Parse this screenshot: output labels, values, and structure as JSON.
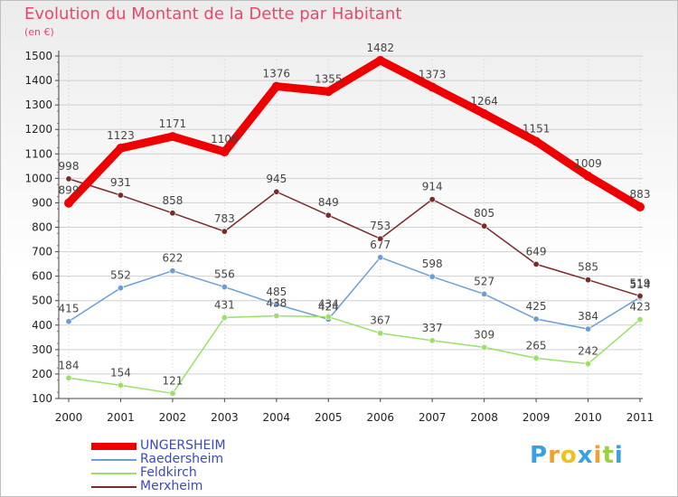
{
  "title": "Evolution du Montant de la Dette par Habitant",
  "unit": "(en €)",
  "logo": {
    "letters": [
      "P",
      "r",
      "o",
      "x",
      "i",
      "t",
      "i"
    ]
  },
  "colors": {
    "ungersheim": "#ee0000",
    "raedersheim": "#6a9fd6",
    "feldkirch": "#9be06a",
    "merxheim": "#7a2a2a",
    "legend_text": "#3a49c4",
    "title": "#e8486c",
    "logo": [
      "#3aa0e0",
      "#f0a030",
      "#f0c020",
      "#3aa0e0",
      "#f0a030",
      "#9bd040",
      "#3aa0e0"
    ]
  },
  "chart_data": {
    "type": "line",
    "x": [
      "2000",
      "2001",
      "2002",
      "2003",
      "2004",
      "2005",
      "2006",
      "2007",
      "2008",
      "2009",
      "2010",
      "2011"
    ],
    "ylim": [
      100,
      1500
    ],
    "yticks": [
      "100",
      "200",
      "300",
      "400",
      "500",
      "600",
      "700",
      "800",
      "900",
      "1000",
      "1100",
      "1200",
      "1300",
      "1400",
      "1500"
    ],
    "grid": true,
    "legend_position": "bottom-left",
    "series": [
      {
        "name": "UNGERSHEIM",
        "key": "ungersheim",
        "values": [
          899,
          1123,
          1171,
          1108,
          1376,
          1355,
          1482,
          1373,
          1264,
          1151,
          1009,
          883
        ],
        "labels": [
          "899",
          "1123",
          "1171",
          "1108",
          "1376",
          "1355",
          "1482",
          "1373",
          "1264",
          "1151",
          "1009",
          "883"
        ]
      },
      {
        "name": "Raedersheim",
        "key": "raedersheim",
        "values": [
          415,
          552,
          622,
          556,
          485,
          424,
          677,
          598,
          527,
          425,
          384,
          514
        ],
        "labels": [
          "415",
          "552",
          "622",
          "556",
          "485",
          "424",
          "677",
          "598",
          "527",
          "425",
          "384",
          "514"
        ]
      },
      {
        "name": "Feldkirch",
        "key": "feldkirch",
        "values": [
          184,
          154,
          121,
          431,
          438,
          434,
          367,
          337,
          309,
          265,
          242,
          423
        ],
        "labels": [
          "184",
          "154",
          "121",
          "431",
          "438",
          "434",
          "367",
          "337",
          "309",
          "265",
          "242",
          "423"
        ]
      },
      {
        "name": "Merxheim",
        "key": "merxheim",
        "values": [
          998,
          931,
          858,
          783,
          945,
          849,
          753,
          914,
          805,
          649,
          585,
          519
        ],
        "labels": [
          "998",
          "931",
          "858",
          "783",
          "945",
          "849",
          "753",
          "914",
          "805",
          "649",
          "585",
          "519"
        ]
      }
    ]
  }
}
